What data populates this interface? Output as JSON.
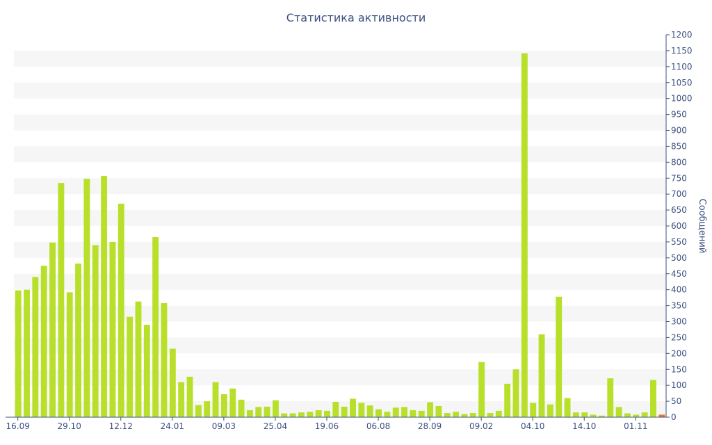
{
  "colors": {
    "bar": "#b8e02b",
    "text": "#3d4f82",
    "axis": "#3d4f82",
    "grid_band": "#f6f6f6",
    "highlight_bar": "#e8792b"
  },
  "chart_data": {
    "type": "bar",
    "title": "Статистика активности",
    "xlabel": "",
    "ylabel": "Сообщений",
    "ylim": [
      0,
      1200
    ],
    "y_ticks": [
      0,
      50,
      100,
      150,
      200,
      250,
      300,
      350,
      400,
      450,
      500,
      550,
      600,
      650,
      700,
      750,
      800,
      850,
      900,
      950,
      1000,
      1050,
      1100,
      1150,
      1200
    ],
    "y_axis_position": "right",
    "grid": true,
    "x_tick_labels": [
      "16.09",
      "29.10",
      "12.12",
      "24.01",
      "09.03",
      "25.04",
      "19.06",
      "06.08",
      "28.09",
      "09.02",
      "04.10",
      "14.10",
      "01.11"
    ],
    "x_tick_bar_index": [
      0,
      6,
      12,
      18,
      24,
      30,
      36,
      42,
      48,
      54,
      60,
      66,
      72
    ],
    "values": [
      398,
      400,
      440,
      475,
      548,
      735,
      392,
      482,
      748,
      540,
      757,
      550,
      670,
      315,
      363,
      290,
      565,
      358,
      215,
      110,
      127,
      38,
      50,
      110,
      72,
      90,
      55,
      22,
      32,
      33,
      53,
      12,
      12,
      15,
      17,
      22,
      20,
      48,
      33,
      58,
      45,
      37,
      25,
      17,
      30,
      32,
      22,
      20,
      47,
      35,
      13,
      17,
      10,
      13,
      173,
      13,
      20,
      105,
      150,
      1142,
      45,
      260,
      40,
      378,
      60,
      15,
      15,
      8,
      5,
      122,
      32,
      12,
      8,
      15,
      117,
      8
    ],
    "highlight_last": true
  }
}
